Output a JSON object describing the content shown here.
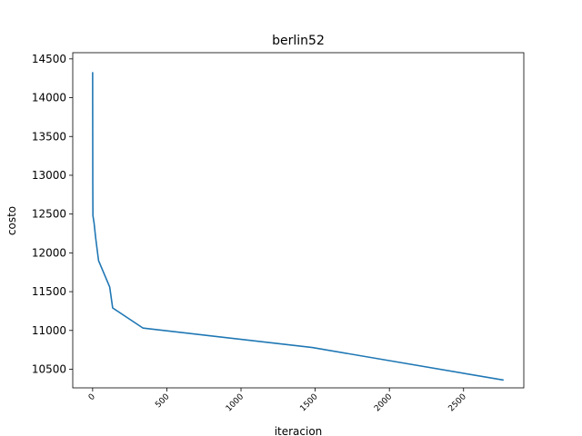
{
  "chart_data": {
    "type": "line",
    "title": "berlin52",
    "xlabel": "iteracion",
    "ylabel": "costo",
    "xlim": [
      -134,
      2906
    ],
    "ylim": [
      10260,
      14580
    ],
    "xticks": [
      0,
      500,
      1000,
      1500,
      2000,
      2500
    ],
    "xtick_labels": [
      "0",
      "500",
      "1000",
      "1500",
      "2000",
      "2500"
    ],
    "yticks": [
      10500,
      11000,
      11500,
      12000,
      12500,
      13000,
      13500,
      14000,
      14500
    ],
    "ytick_labels": [
      "10500",
      "11000",
      "11500",
      "12000",
      "12500",
      "13000",
      "13500",
      "14000",
      "14500"
    ],
    "grid": false,
    "series": [
      {
        "color": "#1f77b4",
        "x": [
          0,
          1,
          2,
          10,
          20,
          40,
          115,
          135,
          340,
          1480,
          2770
        ],
        "y": [
          14330,
          12900,
          12480,
          12380,
          12200,
          11900,
          11560,
          11290,
          11030,
          10780,
          10360
        ]
      }
    ]
  }
}
